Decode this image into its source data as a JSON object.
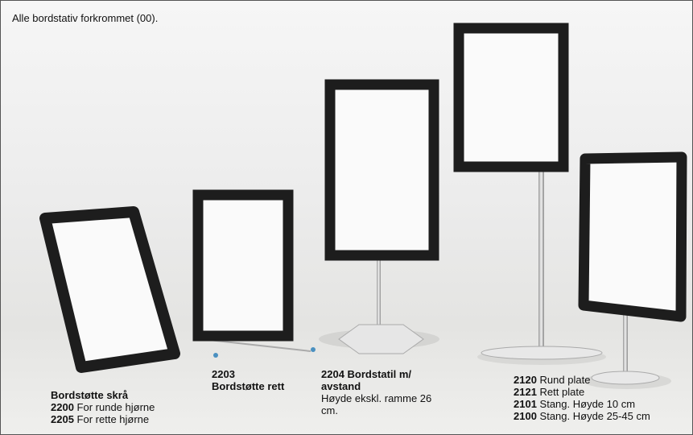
{
  "header": {
    "text": "Alle bordstativ forkrommet (00)."
  },
  "captions": [
    {
      "title": "Bordstøtte skrå",
      "lines": [
        {
          "code": "2200",
          "text": "For runde hjørne"
        },
        {
          "code": "2205",
          "text": "For rette hjørne"
        }
      ]
    },
    {
      "code": "2203",
      "title": "Bordstøtte rett"
    },
    {
      "title": "2204 Bordstatil m/ avstand",
      "description": "Høyde ekskl. ramme 26 cm."
    },
    {
      "lines": [
        {
          "code": "2120",
          "text": "Rund plate"
        },
        {
          "code": "2121",
          "text": "Rett plate"
        },
        {
          "code": "2101",
          "text": "Stang. Høyde 10 cm"
        },
        {
          "code": "2100",
          "text": "Stang. Høyde 25-45 cm"
        }
      ]
    }
  ]
}
